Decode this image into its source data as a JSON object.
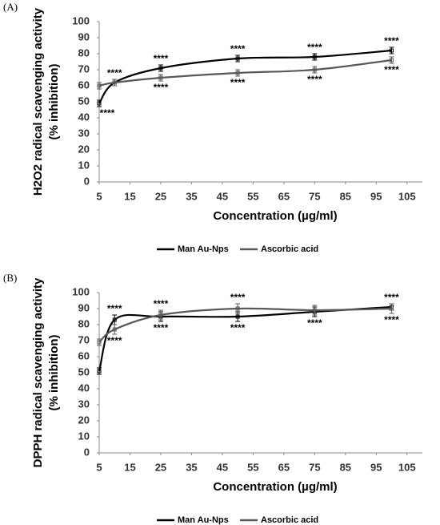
{
  "chart_data": [
    {
      "type": "line",
      "panel_label": "(A)",
      "xlabel": "Concentration (µg/ml)",
      "ylabel": [
        "H2O2 radical scavenging activity",
        "(% inhibition)"
      ],
      "x": [
        5,
        10,
        25,
        50,
        75,
        100
      ],
      "series": [
        {
          "name": "Man Au-Nps",
          "color": "#000000",
          "values": [
            49,
            62,
            71,
            77,
            78,
            82
          ],
          "errors": [
            2,
            2,
            2,
            2,
            2,
            2
          ],
          "significance": [
            "****",
            null,
            "****",
            "****",
            "****",
            "****"
          ]
        },
        {
          "name": "Ascorbic acid",
          "color": "#595959",
          "values": [
            60,
            62,
            65,
            68,
            70,
            76
          ],
          "errors": [
            2,
            2,
            2,
            2,
            2,
            2
          ],
          "significance": [
            null,
            "****",
            "****",
            "****",
            "****",
            "****"
          ]
        }
      ],
      "xlim": [
        5,
        110
      ],
      "xticks": [
        5,
        15,
        25,
        35,
        45,
        55,
        65,
        75,
        85,
        95,
        105
      ],
      "ylim": [
        0,
        100
      ],
      "yticks": [
        0,
        10,
        20,
        30,
        40,
        50,
        60,
        70,
        80,
        90,
        100
      ],
      "legend": "bottom"
    },
    {
      "type": "line",
      "panel_label": "(B)",
      "xlabel": "Concentration (µg/ml)",
      "ylabel": [
        "DPPH radical scavenging activity",
        "(% inhibition)"
      ],
      "x": [
        5,
        10,
        25,
        50,
        75,
        100
      ],
      "series": [
        {
          "name": "Man Au-Nps",
          "color": "#000000",
          "values": [
            51,
            83,
            85,
            85,
            88,
            91
          ],
          "errors": [
            2,
            3,
            3,
            3,
            3,
            2
          ],
          "significance": [
            null,
            "****",
            "****",
            "****",
            "****",
            "****"
          ]
        },
        {
          "name": "Ascorbic acid",
          "color": "#595959",
          "values": [
            69,
            77,
            86,
            90,
            89,
            90
          ],
          "errors": [
            2,
            3,
            3,
            3,
            3,
            3
          ],
          "significance": [
            null,
            "****",
            "****",
            "****",
            null,
            "****"
          ]
        }
      ],
      "xlim": [
        5,
        110
      ],
      "xticks": [
        5,
        15,
        25,
        35,
        45,
        55,
        65,
        75,
        85,
        95,
        105
      ],
      "ylim": [
        0,
        100
      ],
      "yticks": [
        0,
        10,
        20,
        30,
        40,
        50,
        60,
        70,
        80,
        90,
        100
      ],
      "legend": "bottom"
    }
  ]
}
